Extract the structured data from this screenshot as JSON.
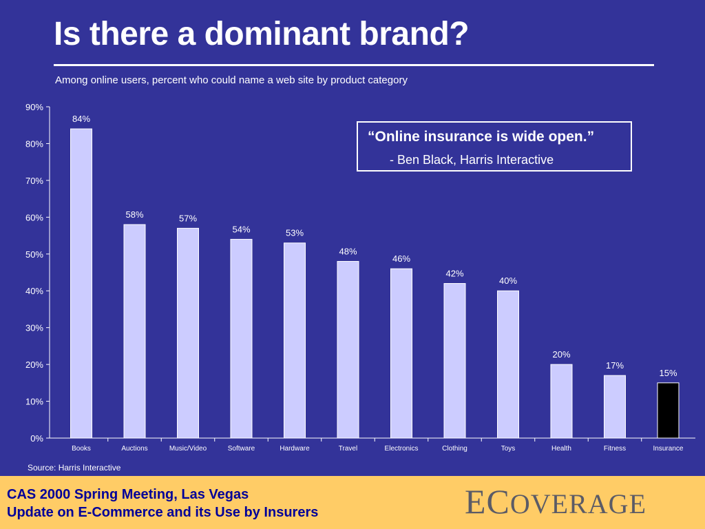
{
  "slide": {
    "title": "Is there a dominant brand?",
    "subtitle": "Among online users, percent who could name a web site by product category"
  },
  "quote": {
    "text": "“Online insurance is wide open.”",
    "author": "- Ben Black, Harris Interactive"
  },
  "source": "Source: Harris Interactive",
  "footer": {
    "line1": "CAS 2000 Spring Meeting, Las Vegas",
    "line2": "Update on E-Commerce and its Use by Insurers",
    "logo": "ECOVERAGE"
  },
  "colors": {
    "background": "#333399",
    "bar": "#ccccff",
    "highlight_bar": "#000000",
    "footer": "#ffcc66",
    "footer_text": "#000099"
  },
  "chart_data": {
    "type": "bar",
    "categories": [
      "Books",
      "Auctions",
      "Music/Video",
      "Software",
      "Hardware",
      "Travel",
      "Electronics",
      "Clothing",
      "Toys",
      "Health",
      "Fitness",
      "Insurance"
    ],
    "values": [
      84,
      58,
      57,
      54,
      53,
      48,
      46,
      42,
      40,
      20,
      17,
      15
    ],
    "data_labels": [
      "84%",
      "58%",
      "57%",
      "54%",
      "53%",
      "48%",
      "46%",
      "42%",
      "40%",
      "20%",
      "17%",
      "15%"
    ],
    "highlight_category": "Insurance",
    "ylim": [
      0,
      90
    ],
    "yticks": [
      0,
      10,
      20,
      30,
      40,
      50,
      60,
      70,
      80,
      90
    ],
    "ytick_labels": [
      "0%",
      "10%",
      "20%",
      "30%",
      "40%",
      "50%",
      "60%",
      "70%",
      "80%",
      "90%"
    ],
    "grid": false,
    "legend": "none"
  }
}
